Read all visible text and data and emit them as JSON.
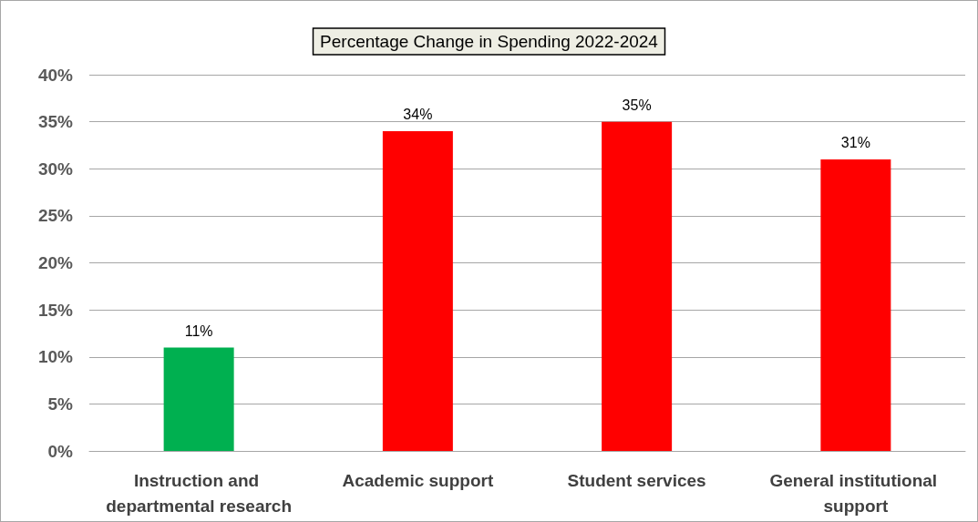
{
  "chart_data": {
    "type": "bar",
    "title": "Percentage Change in Spending 2022-2024",
    "categories": [
      "Instruction and departmental research",
      "Academic support",
      "Student services",
      "General institutional support"
    ],
    "values": [
      11,
      34,
      35,
      31
    ],
    "colors": [
      "#00b050",
      "#ff0000",
      "#ff0000",
      "#ff0000"
    ],
    "value_labels": [
      "11%",
      "34%",
      "35%",
      "31%"
    ],
    "ylim": [
      0,
      40
    ],
    "yticks": [
      {
        "value": 0,
        "label": "0%"
      },
      {
        "value": 5,
        "label": "5%"
      },
      {
        "value": 10,
        "label": "10%"
      },
      {
        "value": 15,
        "label": "15%"
      },
      {
        "value": 20,
        "label": "20%"
      },
      {
        "value": 25,
        "label": "25%"
      },
      {
        "value": 30,
        "label": "30%"
      },
      {
        "value": 35,
        "label": "35%"
      },
      {
        "value": 40,
        "label": "40%"
      }
    ],
    "grid": "y"
  }
}
